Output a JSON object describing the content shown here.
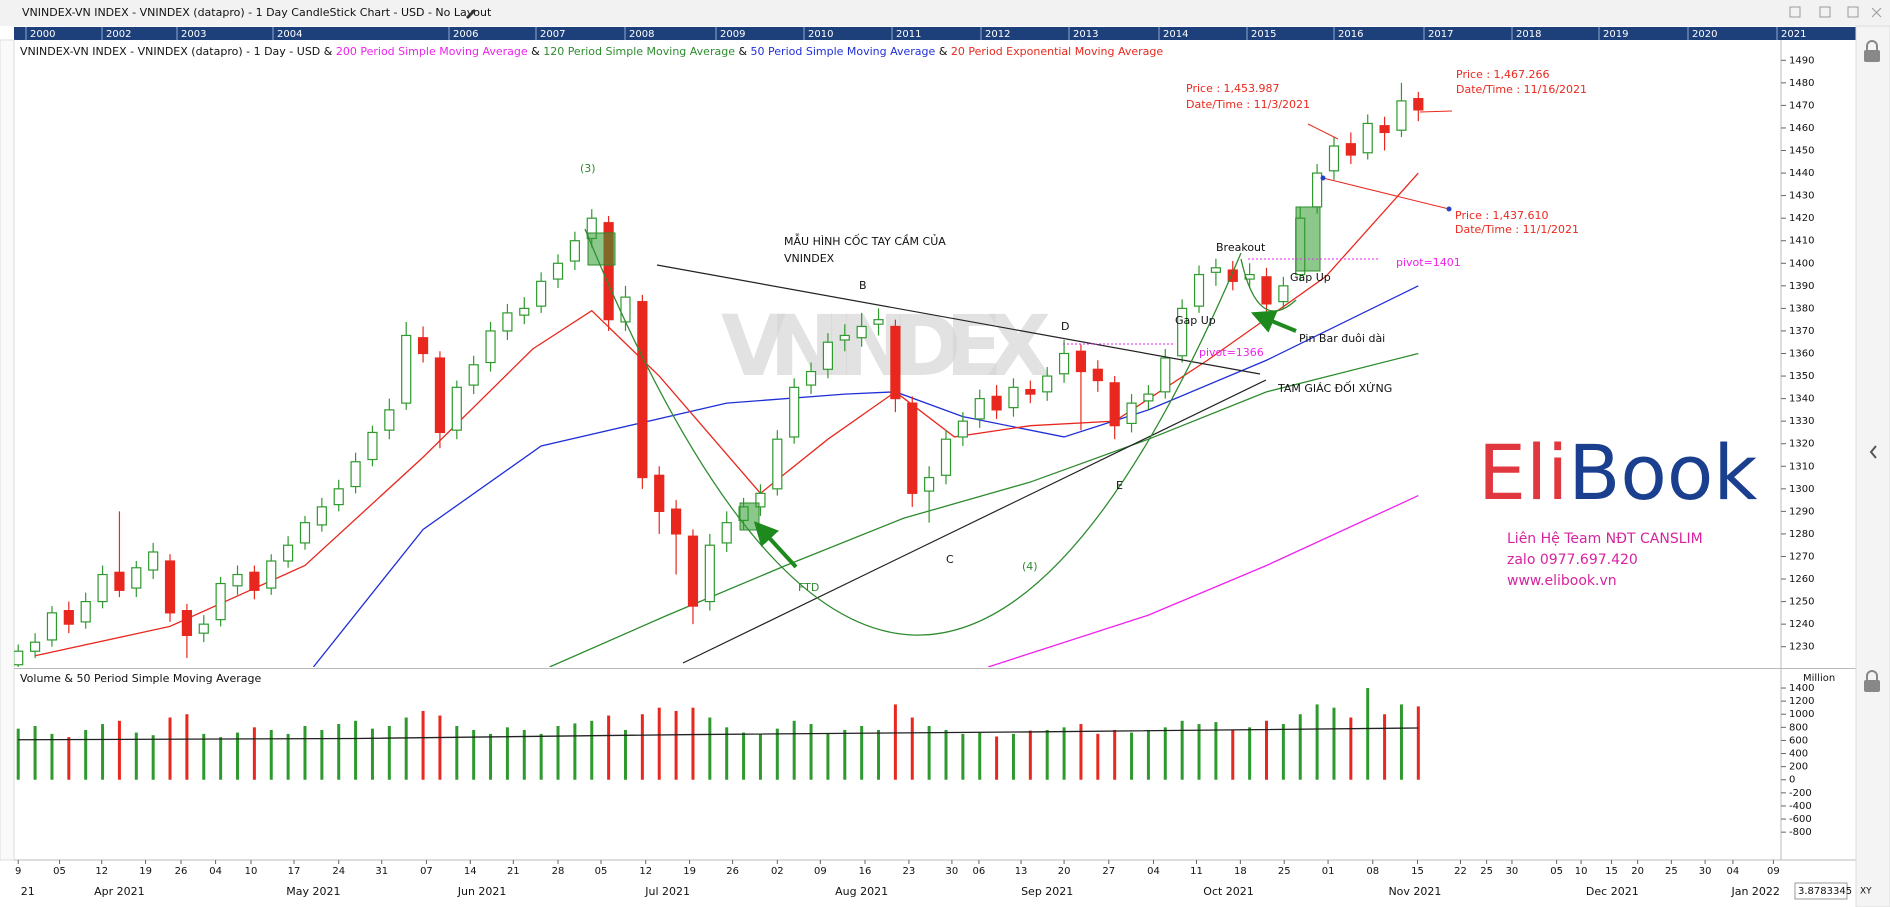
{
  "header": {
    "title": "VNINDEX-VN INDEX - VNINDEX (datapro) - 1 Day CandleStick Chart - USD - No Layout",
    "years": [
      "2000",
      "2002",
      "2003",
      "2004",
      "2006",
      "2007",
      "2008",
      "2009",
      "2010",
      "2011",
      "2012",
      "2013",
      "2014",
      "2015",
      "2016",
      "2017",
      "2018",
      "2019",
      "2020",
      "2021"
    ]
  },
  "chart_data": [
    {
      "type": "candlestick",
      "subtitle": "VNINDEX-VN INDEX - VNINDEX (datapro) - 1 Day - USD",
      "legend_joiner": "&",
      "x": [
        0,
        2,
        4,
        6,
        8,
        10,
        12,
        14,
        16,
        18,
        20,
        22,
        24,
        26,
        28,
        30,
        32,
        34,
        36,
        38,
        40,
        42,
        44,
        46,
        48,
        50,
        52,
        54,
        56,
        58,
        60,
        62,
        64,
        66,
        68,
        70,
        72,
        74,
        76,
        78,
        80,
        82,
        84,
        86,
        88,
        90,
        92,
        94,
        96,
        98,
        100,
        102,
        104,
        106,
        108,
        110,
        112,
        114,
        116,
        118,
        120,
        122,
        124,
        126,
        128,
        130,
        132,
        134,
        136,
        138,
        140,
        142,
        144,
        146,
        148,
        150,
        152,
        154,
        156,
        158,
        160,
        162,
        164,
        166
      ],
      "open": [
        1222,
        1228,
        1233,
        1246,
        1241,
        1250,
        1263,
        1256,
        1264,
        1268,
        1246,
        1236,
        1242,
        1257,
        1263,
        1256,
        1268,
        1276,
        1284,
        1293,
        1301,
        1313,
        1326,
        1338,
        1367,
        1358,
        1326,
        1346,
        1356,
        1370,
        1377,
        1381,
        1393,
        1401,
        1411,
        1418,
        1374,
        1383,
        1306,
        1291,
        1279,
        1250,
        1276,
        1286,
        1292,
        1300,
        1323,
        1346,
        1353,
        1366,
        1367,
        1373,
        1372,
        1338,
        1299,
        1306,
        1323,
        1331,
        1341,
        1336,
        1344,
        1343,
        1351,
        1361,
        1353,
        1347,
        1329,
        1339,
        1343,
        1359,
        1381,
        1396,
        1397,
        1393,
        1394,
        1383,
        1395,
        1425,
        1441,
        1453,
        1449,
        1461,
        1459,
        1473
      ],
      "high": [
        1231,
        1236,
        1248,
        1250,
        1254,
        1266,
        1290,
        1268,
        1276,
        1271,
        1249,
        1244,
        1261,
        1266,
        1266,
        1271,
        1279,
        1288,
        1296,
        1304,
        1316,
        1328,
        1340,
        1374,
        1372,
        1361,
        1348,
        1359,
        1374,
        1382,
        1385,
        1396,
        1404,
        1414,
        1424,
        1421,
        1390,
        1386,
        1310,
        1295,
        1282,
        1280,
        1290,
        1296,
        1302,
        1326,
        1349,
        1356,
        1369,
        1373,
        1378,
        1380,
        1375,
        1341,
        1310,
        1326,
        1334,
        1344,
        1346,
        1349,
        1348,
        1354,
        1366,
        1364,
        1357,
        1350,
        1342,
        1346,
        1362,
        1384,
        1399,
        1402,
        1401,
        1400,
        1398,
        1394,
        1425,
        1444,
        1456,
        1458,
        1466,
        1465,
        1480,
        1476
      ],
      "low": [
        1219,
        1225,
        1230,
        1236,
        1238,
        1247,
        1252,
        1252,
        1260,
        1241,
        1225,
        1232,
        1239,
        1253,
        1251,
        1253,
        1265,
        1273,
        1281,
        1290,
        1298,
        1310,
        1322,
        1335,
        1356,
        1318,
        1322,
        1342,
        1352,
        1366,
        1373,
        1378,
        1389,
        1397,
        1407,
        1370,
        1370,
        1300,
        1280,
        1262,
        1240,
        1246,
        1272,
        1282,
        1288,
        1297,
        1320,
        1342,
        1349,
        1361,
        1363,
        1368,
        1334,
        1292,
        1285,
        1302,
        1319,
        1327,
        1331,
        1332,
        1338,
        1339,
        1347,
        1326,
        1343,
        1322,
        1325,
        1335,
        1340,
        1356,
        1378,
        1390,
        1388,
        1389,
        1376,
        1380,
        1392,
        1422,
        1437,
        1444,
        1446,
        1450,
        1456,
        1463
      ],
      "close": [
        1228,
        1232,
        1245,
        1240,
        1250,
        1262,
        1255,
        1265,
        1272,
        1245,
        1235,
        1240,
        1258,
        1262,
        1255,
        1268,
        1275,
        1285,
        1292,
        1300,
        1312,
        1325,
        1335,
        1368,
        1360,
        1325,
        1345,
        1355,
        1370,
        1378,
        1380,
        1392,
        1400,
        1410,
        1420,
        1375,
        1385,
        1305,
        1290,
        1280,
        1248,
        1275,
        1285,
        1292,
        1298,
        1322,
        1345,
        1352,
        1365,
        1368,
        1372,
        1375,
        1340,
        1298,
        1305,
        1322,
        1330,
        1340,
        1335,
        1345,
        1342,
        1350,
        1360,
        1352,
        1348,
        1328,
        1338,
        1342,
        1358,
        1380,
        1395,
        1398,
        1392,
        1395,
        1382,
        1390,
        1420,
        1440,
        1452,
        1448,
        1462,
        1458,
        1472,
        1468
      ],
      "up_color": "#2e9a2e",
      "down_color": "#e8281e",
      "overlays": [
        {
          "name": "200 Period Simple Moving Average",
          "color": "#ee22ee",
          "x": [
            115,
            134,
            148,
            166
          ],
          "values": [
            1221,
            1244,
            1266,
            1297
          ]
        },
        {
          "name": "120 Period Simple Moving Average",
          "color": "#2e8b2e",
          "x": [
            63,
            77,
            91,
            105,
            120,
            134,
            148,
            166
          ],
          "values": [
            1221,
            1244,
            1266,
            1287,
            1303,
            1322,
            1343,
            1360
          ]
        },
        {
          "name": "50 Period Simple Moving Average",
          "color": "#1f2fd8",
          "x": [
            35,
            48,
            62,
            84,
            98,
            104,
            112,
            124,
            134,
            148,
            166
          ],
          "values": [
            1221,
            1282,
            1319,
            1338,
            1342,
            1343,
            1332,
            1323,
            1335,
            1357,
            1390
          ]
        },
        {
          "name": "20 Period Exponential Moving Average",
          "color": "#e8281e",
          "x": [
            2,
            18,
            34,
            48,
            61,
            68,
            76,
            88,
            96,
            104,
            111,
            120,
            130,
            141,
            155,
            166
          ],
          "values": [
            1226,
            1239,
            1266,
            1314,
            1362,
            1379,
            1350,
            1298,
            1322,
            1343,
            1323,
            1328,
            1330,
            1357,
            1394,
            1440
          ]
        }
      ],
      "xlim": [
        -0.5,
        209
      ],
      "ylim": [
        1221,
        1499
      ],
      "yticks": [
        1230,
        1240,
        1250,
        1260,
        1270,
        1280,
        1290,
        1300,
        1310,
        1320,
        1330,
        1340,
        1350,
        1360,
        1370,
        1380,
        1390,
        1400,
        1410,
        1420,
        1430,
        1440,
        1450,
        1460,
        1470,
        1480,
        1490
      ],
      "xticks": [
        {
          "value": 0,
          "label": "9"
        },
        {
          "value": 4.9,
          "label": "05"
        },
        {
          "value": 9.9,
          "label": "12"
        },
        {
          "value": 15.1,
          "label": "19"
        },
        {
          "value": 19.3,
          "label": "26"
        },
        {
          "value": 23.4,
          "label": "04"
        },
        {
          "value": 27.6,
          "label": "10"
        },
        {
          "value": 32.7,
          "label": "17"
        },
        {
          "value": 38,
          "label": "24"
        },
        {
          "value": 43.1,
          "label": "31"
        },
        {
          "value": 48.4,
          "label": "07"
        },
        {
          "value": 53.6,
          "label": "14"
        },
        {
          "value": 58.7,
          "label": "21"
        },
        {
          "value": 64,
          "label": "28"
        },
        {
          "value": 69.1,
          "label": "05"
        },
        {
          "value": 74.4,
          "label": "12"
        },
        {
          "value": 79.6,
          "label": "19"
        },
        {
          "value": 84.7,
          "label": "26"
        },
        {
          "value": 90,
          "label": "02"
        },
        {
          "value": 95.1,
          "label": "09"
        },
        {
          "value": 100.4,
          "label": "16"
        },
        {
          "value": 105.6,
          "label": "23"
        },
        {
          "value": 110.7,
          "label": "30"
        },
        {
          "value": 113.9,
          "label": "06"
        },
        {
          "value": 118.9,
          "label": "13"
        },
        {
          "value": 124,
          "label": "20"
        },
        {
          "value": 129.3,
          "label": "27"
        },
        {
          "value": 134.6,
          "label": "04"
        },
        {
          "value": 139.7,
          "label": "11"
        },
        {
          "value": 144.9,
          "label": "18"
        },
        {
          "value": 150.1,
          "label": "25"
        },
        {
          "value": 155.3,
          "label": "01"
        },
        {
          "value": 160.6,
          "label": "08"
        },
        {
          "value": 165.9,
          "label": "15"
        },
        {
          "value": 171,
          "label": "22"
        },
        {
          "value": 174.1,
          "label": "25"
        },
        {
          "value": 177.1,
          "label": "30"
        },
        {
          "value": 182.4,
          "label": "05"
        },
        {
          "value": 185.3,
          "label": "10"
        },
        {
          "value": 188.9,
          "label": "15"
        },
        {
          "value": 192,
          "label": "20"
        },
        {
          "value": 196,
          "label": "25"
        },
        {
          "value": 200,
          "label": "30"
        },
        {
          "value": 203.3,
          "label": "04"
        },
        {
          "value": 208.1,
          "label": "09"
        }
      ],
      "month_ticks": [
        {
          "value": 0.3,
          "label": "21"
        },
        {
          "value": 12,
          "label": "Apr 2021"
        },
        {
          "value": 35,
          "label": "May 2021"
        },
        {
          "value": 55,
          "label": "Jun 2021"
        },
        {
          "value": 77,
          "label": "Jul 2021"
        },
        {
          "value": 100,
          "label": "Aug 2021"
        },
        {
          "value": 122,
          "label": "Sep 2021"
        },
        {
          "value": 143.5,
          "label": "Oct 2021"
        },
        {
          "value": 165.6,
          "label": "Nov 2021"
        },
        {
          "value": 189,
          "label": "Dec 2021"
        },
        {
          "value": 206,
          "label": "Jan 2022"
        }
      ],
      "watermark": "VNINDEX",
      "annotations": [
        "(3)",
        "MẪU HÌNH CỐC TAY CẦM CỦA",
        "VNINDEX",
        "B",
        "D",
        "C",
        "E",
        "(4)",
        "FTD",
        "Breakout",
        "Gap Up",
        "Gap Up",
        "Pin Bar đuôi dài",
        "pivot=1366",
        "pivot=1401",
        "TAM GIÁC ĐỐI XỨNG",
        "Price : 1,453.987",
        "Date/Time : 11/3/2021",
        "Price : 1,467.266",
        "Date/Time : 11/16/2021",
        "Price : 1,437.610",
        "Date/Time : 11/1/2021"
      ]
    },
    {
      "type": "bar",
      "title": "Volume",
      "legend_joiner": "&",
      "unit": "Million",
      "x": [
        0,
        2,
        4,
        6,
        8,
        10,
        12,
        14,
        16,
        18,
        20,
        22,
        24,
        26,
        28,
        30,
        32,
        34,
        36,
        38,
        40,
        42,
        44,
        46,
        48,
        50,
        52,
        54,
        56,
        58,
        60,
        62,
        64,
        66,
        68,
        70,
        72,
        74,
        76,
        78,
        80,
        82,
        84,
        86,
        88,
        90,
        92,
        94,
        96,
        98,
        100,
        102,
        104,
        106,
        108,
        110,
        112,
        114,
        116,
        118,
        120,
        122,
        124,
        126,
        128,
        130,
        132,
        134,
        136,
        138,
        140,
        142,
        144,
        146,
        148,
        150,
        152,
        154,
        156,
        158,
        160,
        162,
        164,
        166
      ],
      "values": [
        780,
        820,
        700,
        650,
        760,
        850,
        900,
        720,
        680,
        950,
        1000,
        700,
        650,
        720,
        800,
        760,
        700,
        820,
        760,
        850,
        900,
        780,
        820,
        950,
        1050,
        980,
        820,
        760,
        700,
        800,
        760,
        700,
        820,
        860,
        900,
        980,
        760,
        1000,
        1100,
        1050,
        1100,
        950,
        800,
        720,
        700,
        780,
        900,
        850,
        700,
        760,
        820,
        760,
        1150,
        950,
        820,
        760,
        700,
        720,
        660,
        700,
        750,
        760,
        800,
        850,
        700,
        760,
        720,
        760,
        800,
        900,
        850,
        880,
        760,
        800,
        900,
        850,
        1000,
        1150,
        1100,
        950,
        1400,
        1000,
        1150,
        1120
      ],
      "overlays": [
        {
          "name": "50 Period Simple Moving Average",
          "color": "#222222",
          "x": [
            0,
            40,
            80,
            120,
            166
          ],
          "values": [
            610,
            630,
            690,
            730,
            790
          ]
        }
      ],
      "xlim": [
        -0.5,
        209
      ],
      "ylim": [
        -1210,
        1660
      ],
      "yticks": [
        1400,
        1200,
        1000,
        800,
        600,
        400,
        200,
        0,
        -200,
        -400,
        -600,
        -800
      ]
    }
  ],
  "branding": {
    "logo_a": "Eli",
    "logo_b": "Book",
    "contact": [
      "Liên Hệ Team NĐT CANSLIM",
      "zalo 0977.697.420",
      "www.elibook.vn"
    ]
  },
  "footer": {
    "readout": "3.8783345",
    "mode": "XY"
  }
}
